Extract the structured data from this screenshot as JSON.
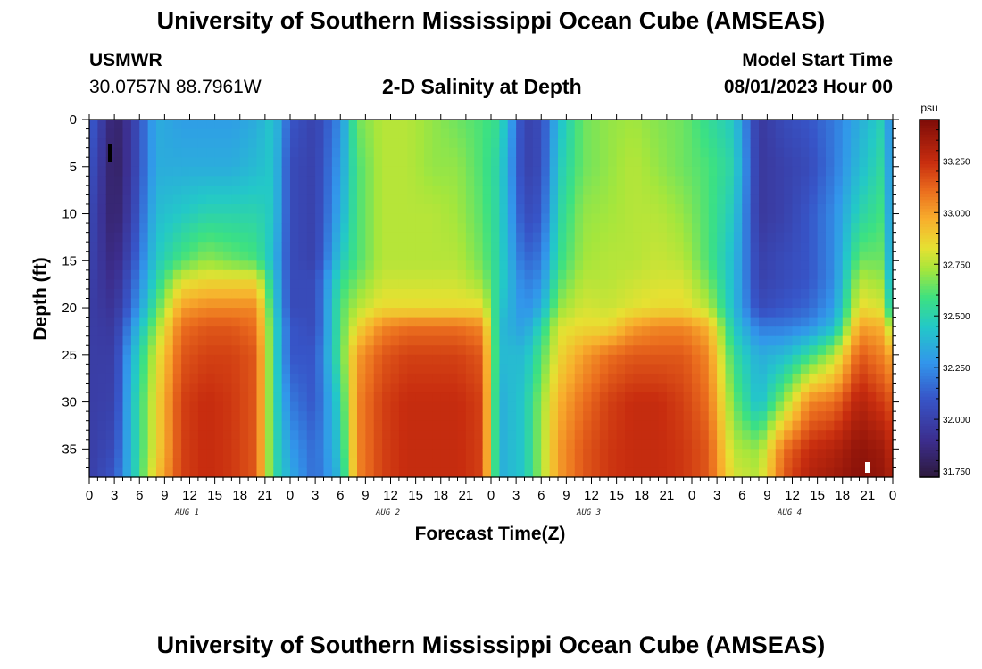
{
  "page": {
    "title": "University of Southern Mississippi Ocean Cube (AMSEAS)",
    "station_name": "USMWR",
    "station_coords": "30.0757N  88.7961W",
    "plot_title": "2-D Salinity at Depth",
    "model_start_label": "Model Start Time",
    "model_start_value": "08/01/2023 Hour 00",
    "footer_title": "University of Southern Mississippi Ocean Cube (AMSEAS)"
  },
  "chart_data": {
    "type": "heatmap",
    "title": "2-D Salinity at Depth",
    "xlabel": "Forecast Time(Z)",
    "ylabel": "Depth (ft)",
    "x_hours_range": [
      0,
      96
    ],
    "y_range_ft": [
      0,
      38
    ],
    "y_ticks": [
      0,
      5,
      10,
      15,
      20,
      25,
      30,
      35
    ],
    "x_tick_labels": [
      "0",
      "3",
      "6",
      "9",
      "12",
      "15",
      "18",
      "21",
      "0",
      "3",
      "6",
      "9",
      "12",
      "15",
      "18",
      "21",
      "0",
      "3",
      "6",
      "9",
      "12",
      "15",
      "18",
      "21",
      "0",
      "3",
      "6",
      "9",
      "12",
      "15",
      "18",
      "21",
      "0"
    ],
    "day_labels": [
      "AUG 1",
      "AUG 2",
      "AUG 3",
      "AUG 4"
    ],
    "colorbar_unit": "psu",
    "colorbar_range": [
      31.72,
      33.45
    ],
    "colorbar_ticks": [
      "33.250",
      "33.000",
      "32.750",
      "32.500",
      "32.250",
      "32.000",
      "31.750"
    ],
    "salinity_psu": {
      "hours": [
        0,
        3,
        5,
        8,
        11,
        14,
        17,
        20,
        22,
        24,
        27,
        30,
        32,
        35,
        38,
        41,
        44,
        47,
        49,
        52,
        54,
        56,
        59,
        62,
        65,
        68,
        71,
        74,
        77,
        80,
        83,
        86,
        89,
        92,
        95,
        96
      ],
      "depths_ft": [
        0,
        5,
        10,
        15,
        17,
        20,
        22,
        25,
        30,
        35,
        38
      ],
      "values": [
        [
          32.15,
          32.1,
          32.05,
          32.02,
          32.0,
          31.98,
          31.98,
          31.98,
          31.98,
          31.98,
          31.98
        ],
        [
          31.8,
          31.78,
          31.8,
          31.85,
          31.88,
          31.92,
          31.95,
          31.98,
          32.0,
          32.05,
          32.1
        ],
        [
          31.95,
          31.95,
          31.98,
          32.05,
          32.1,
          32.15,
          32.25,
          32.35,
          32.4,
          32.4,
          32.4
        ],
        [
          32.35,
          32.35,
          32.4,
          32.45,
          32.5,
          32.6,
          32.7,
          32.8,
          32.85,
          32.85,
          32.9
        ],
        [
          32.3,
          32.35,
          32.45,
          32.6,
          32.8,
          33.0,
          33.1,
          33.15,
          33.2,
          33.2,
          33.2
        ],
        [
          32.3,
          32.35,
          32.5,
          32.7,
          32.85,
          33.05,
          33.15,
          33.2,
          33.25,
          33.25,
          33.25
        ],
        [
          32.3,
          32.35,
          32.5,
          32.65,
          32.85,
          33.05,
          33.15,
          33.2,
          33.22,
          33.22,
          33.22
        ],
        [
          32.35,
          32.4,
          32.5,
          32.6,
          32.85,
          33.05,
          33.1,
          33.15,
          33.15,
          33.15,
          33.15
        ],
        [
          32.45,
          32.45,
          32.45,
          32.4,
          32.45,
          32.5,
          32.55,
          32.55,
          32.55,
          32.55,
          32.55
        ],
        [
          32.1,
          32.05,
          32.05,
          32.05,
          32.05,
          32.05,
          32.1,
          32.1,
          32.2,
          32.3,
          32.35
        ],
        [
          32.0,
          32.0,
          32.0,
          32.0,
          32.05,
          32.05,
          32.05,
          32.1,
          32.1,
          32.15,
          32.15
        ],
        [
          32.25,
          32.3,
          32.35,
          32.45,
          32.55,
          32.6,
          32.6,
          32.6,
          32.5,
          32.45,
          32.4
        ],
        [
          32.65,
          32.6,
          32.6,
          32.6,
          32.65,
          32.75,
          32.85,
          33.0,
          33.05,
          33.05,
          33.05
        ],
        [
          32.75,
          32.75,
          32.75,
          32.75,
          32.78,
          32.85,
          33.05,
          33.15,
          33.2,
          33.2,
          33.2
        ],
        [
          32.75,
          32.75,
          32.75,
          32.75,
          32.78,
          32.85,
          33.1,
          33.2,
          33.25,
          33.25,
          33.25
        ],
        [
          32.7,
          32.7,
          32.75,
          32.75,
          32.78,
          32.85,
          33.1,
          33.2,
          33.25,
          33.25,
          33.25
        ],
        [
          32.65,
          32.7,
          32.72,
          32.75,
          32.78,
          32.85,
          33.1,
          33.2,
          33.25,
          33.25,
          33.25
        ],
        [
          32.6,
          32.6,
          32.62,
          32.65,
          32.7,
          32.85,
          33.05,
          33.15,
          33.2,
          33.2,
          33.2
        ],
        [
          32.55,
          32.5,
          32.5,
          32.5,
          32.5,
          32.45,
          32.4,
          32.4,
          32.35,
          32.35,
          32.35
        ],
        [
          32.0,
          32.0,
          32.05,
          32.15,
          32.2,
          32.25,
          32.3,
          32.4,
          32.45,
          32.45,
          32.45
        ],
        [
          32.05,
          32.05,
          32.1,
          32.2,
          32.25,
          32.35,
          32.5,
          32.6,
          32.7,
          32.72,
          32.72
        ],
        [
          32.4,
          32.45,
          32.5,
          32.55,
          32.6,
          32.7,
          32.8,
          32.85,
          32.95,
          33.0,
          33.0
        ],
        [
          32.65,
          32.65,
          32.7,
          32.72,
          32.75,
          32.8,
          32.85,
          33.0,
          33.1,
          33.15,
          33.15
        ],
        [
          32.7,
          32.7,
          32.72,
          32.75,
          32.75,
          32.78,
          32.85,
          33.1,
          33.2,
          33.22,
          33.22
        ],
        [
          32.72,
          32.75,
          32.75,
          32.75,
          32.78,
          32.82,
          33.0,
          33.15,
          33.25,
          33.25,
          33.25
        ],
        [
          32.68,
          32.7,
          32.75,
          32.78,
          32.8,
          32.85,
          33.05,
          33.15,
          33.25,
          33.25,
          33.25
        ],
        [
          32.65,
          32.65,
          32.7,
          32.75,
          32.8,
          32.85,
          33.05,
          33.15,
          33.2,
          33.22,
          33.22
        ],
        [
          32.55,
          32.6,
          32.6,
          32.6,
          32.65,
          32.75,
          32.95,
          33.05,
          33.1,
          33.15,
          33.15
        ],
        [
          32.45,
          32.5,
          32.45,
          32.4,
          32.4,
          32.4,
          32.45,
          32.55,
          32.65,
          32.75,
          32.8
        ],
        [
          31.95,
          31.95,
          31.95,
          32.0,
          32.0,
          32.05,
          32.2,
          32.35,
          32.4,
          32.7,
          32.75
        ],
        [
          32.05,
          32.0,
          32.0,
          32.05,
          32.05,
          32.1,
          32.2,
          32.4,
          32.7,
          33.1,
          33.15
        ],
        [
          32.1,
          32.05,
          32.1,
          32.1,
          32.1,
          32.15,
          32.25,
          32.55,
          33.05,
          33.25,
          33.3
        ],
        [
          32.2,
          32.2,
          32.25,
          32.25,
          32.25,
          32.3,
          32.4,
          32.75,
          33.1,
          33.3,
          33.35
        ],
        [
          32.35,
          32.4,
          32.5,
          32.65,
          32.75,
          32.85,
          33.0,
          33.15,
          33.3,
          33.4,
          33.42
        ],
        [
          32.5,
          32.55,
          32.6,
          32.65,
          32.7,
          32.8,
          32.95,
          33.05,
          33.2,
          33.35,
          33.38
        ],
        [
          32.1,
          32.1,
          32.1,
          32.15,
          32.2,
          32.3,
          32.6,
          32.95,
          33.15,
          33.25,
          33.3
        ]
      ]
    }
  }
}
